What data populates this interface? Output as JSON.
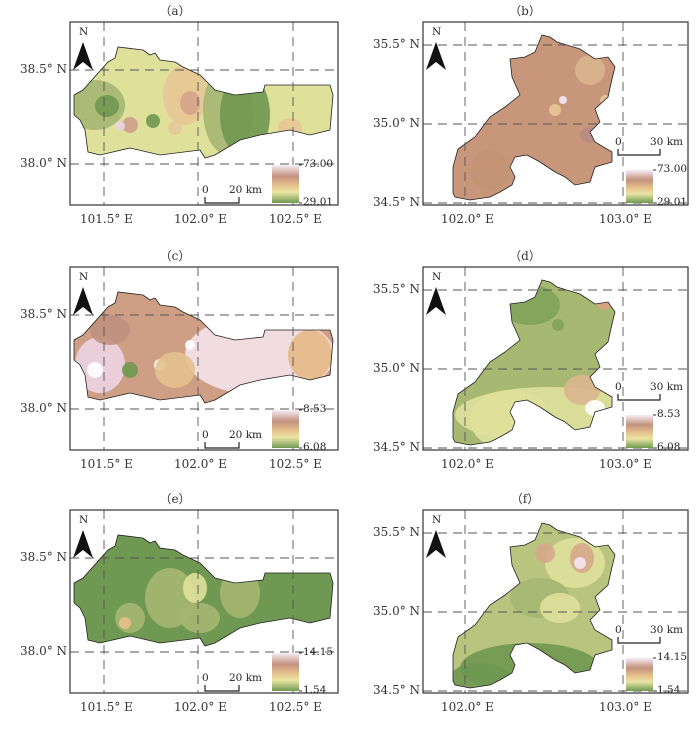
{
  "figure": {
    "panels": [
      {
        "label": "（a）",
        "region": "west",
        "lon_ticks": [
          "101.5° E",
          "102.0° E",
          "102.5° E"
        ],
        "lat_ticks": [
          "38.5° N",
          "38.0° N"
        ],
        "legend_max": "73.00",
        "legend_min": "29.01",
        "scale_zero": "0",
        "scale_label": "20 km",
        "north": "N",
        "base_color": "#dfe19b"
      },
      {
        "label": "（b）",
        "region": "east",
        "lon_ticks": [
          "102.0° E",
          "103.0° E"
        ],
        "lat_ticks": [
          "35.5° N",
          "35.0° N",
          "34.5° N"
        ],
        "legend_max": "73.00",
        "legend_min": "29.01",
        "scale_zero": "0",
        "scale_label": "30 km",
        "north": "N",
        "base_color": "#c8977b"
      },
      {
        "label": "（c）",
        "region": "west",
        "lon_ticks": [
          "101.5° E",
          "102.0° E",
          "102.5° E"
        ],
        "lat_ticks": [
          "38.5° N",
          "38.0° N"
        ],
        "legend_max": "8.53",
        "legend_min": "6.08",
        "scale_zero": "0",
        "scale_label": "20 km",
        "north": "N",
        "base_color": "#cf9f85"
      },
      {
        "label": "（d）",
        "region": "east",
        "lon_ticks": [
          "102.0° E",
          "103.0° E"
        ],
        "lat_ticks": [
          "35.5° N",
          "35.0° N",
          "34.5° N"
        ],
        "legend_max": "8.53",
        "legend_min": "6.08",
        "scale_zero": "0",
        "scale_label": "30 km",
        "north": "N",
        "base_color": "#a6b872"
      },
      {
        "label": "（e）",
        "region": "west",
        "lon_ticks": [
          "101.5° E",
          "102.0° E",
          "102.5° E"
        ],
        "lat_ticks": [
          "38.5° N",
          "38.0° N"
        ],
        "legend_max": "14.15",
        "legend_min": "1.54",
        "scale_zero": "0",
        "scale_label": "20 km",
        "north": "N",
        "base_color": "#6f9852"
      },
      {
        "label": "（f）",
        "region": "east",
        "lon_ticks": [
          "102.0° E",
          "103.0° E"
        ],
        "lat_ticks": [
          "35.5° N",
          "35.0° N",
          "34.5° N"
        ],
        "legend_max": "14.15",
        "legend_min": "1.54",
        "scale_zero": "0",
        "scale_label": "30 km",
        "north": "N",
        "base_color": "#b9c47f"
      }
    ]
  }
}
